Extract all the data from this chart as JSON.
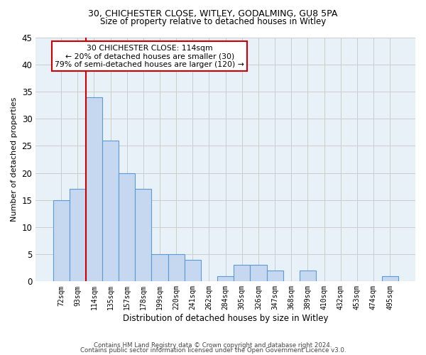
{
  "title1": "30, CHICHESTER CLOSE, WITLEY, GODALMING, GU8 5PA",
  "title2": "Size of property relative to detached houses in Witley",
  "xlabel": "Distribution of detached houses by size in Witley",
  "ylabel": "Number of detached properties",
  "categories": [
    "72sqm",
    "93sqm",
    "114sqm",
    "135sqm",
    "157sqm",
    "178sqm",
    "199sqm",
    "220sqm",
    "241sqm",
    "262sqm",
    "284sqm",
    "305sqm",
    "326sqm",
    "347sqm",
    "368sqm",
    "389sqm",
    "410sqm",
    "432sqm",
    "453sqm",
    "474sqm",
    "495sqm"
  ],
  "values": [
    15,
    17,
    34,
    26,
    20,
    17,
    5,
    5,
    4,
    0,
    1,
    3,
    3,
    2,
    0,
    2,
    0,
    0,
    0,
    0,
    1
  ],
  "bar_color": "#c5d8f0",
  "bar_edge_color": "#5b9bd5",
  "highlight_line_index": 2,
  "highlight_color": "#cc0000",
  "annotation_text": "30 CHICHESTER CLOSE: 114sqm\n← 20% of detached houses are smaller (30)\n79% of semi-detached houses are larger (120) →",
  "annotation_box_color": "#cc0000",
  "ylim": [
    0,
    45
  ],
  "yticks": [
    0,
    5,
    10,
    15,
    20,
    25,
    30,
    35,
    40,
    45
  ],
  "grid_color": "#cccccc",
  "background_color": "#e8f0f8",
  "footer1": "Contains HM Land Registry data © Crown copyright and database right 2024.",
  "footer2": "Contains public sector information licensed under the Open Government Licence v3.0."
}
